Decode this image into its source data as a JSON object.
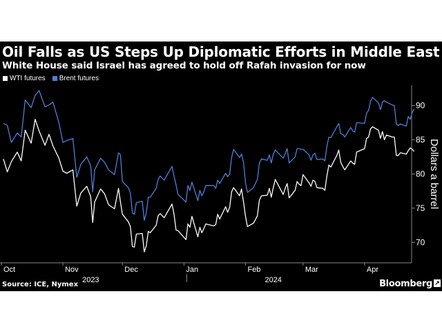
{
  "headline": "Oil Falls as US Steps Up Diplomatic Efforts in Middle East",
  "subheadline": "White House said Israel has agreed to hold off Rafah invasion for now",
  "source": "Source: ICE, Nymex",
  "brand": "Bloomberg",
  "brand_icon": "arrow-icon",
  "colors": {
    "background": "#000000",
    "wti": "#ffffff",
    "brent": "#4f7fd6",
    "grid": "#3a3a3a"
  },
  "chart_data": {
    "type": "line",
    "title": "",
    "xlabel": "",
    "ylabel": "Dollars a barrel",
    "ylim": [
      67,
      93
    ],
    "y_ticks": [
      70,
      75,
      80,
      85,
      90
    ],
    "y_axis_side": "right",
    "x_range": [
      "2023-10-01",
      "2024-04-24"
    ],
    "x_month_labels": [
      {
        "label": "Oct",
        "date": "2023-10-01"
      },
      {
        "label": "Nov",
        "date": "2023-11-01"
      },
      {
        "label": "Dec",
        "date": "2023-12-01"
      },
      {
        "label": "Jan",
        "date": "2024-01-01"
      },
      {
        "label": "Feb",
        "date": "2024-02-01"
      },
      {
        "label": "Mar",
        "date": "2024-03-01"
      },
      {
        "label": "Apr",
        "date": "2024-04-01"
      }
    ],
    "x_year_labels": [
      {
        "label": "2023",
        "date": "2023-11-15"
      },
      {
        "label": "2024",
        "date": "2024-02-15"
      }
    ],
    "legend_position": "top-left",
    "grid": false,
    "series": [
      {
        "name": "WTI futures",
        "color": "#ffffff",
        "points": [
          [
            "2023-10-02",
            82.2
          ],
          [
            "2023-10-04",
            80.3
          ],
          [
            "2023-10-06",
            81.8
          ],
          [
            "2023-10-09",
            83.2
          ],
          [
            "2023-10-11",
            81.9
          ],
          [
            "2023-10-13",
            86.4
          ],
          [
            "2023-10-16",
            84.5
          ],
          [
            "2023-10-18",
            88.0
          ],
          [
            "2023-10-20",
            86.3
          ],
          [
            "2023-10-23",
            84.2
          ],
          [
            "2023-10-25",
            85.8
          ],
          [
            "2023-10-27",
            84.1
          ],
          [
            "2023-10-30",
            82.3
          ],
          [
            "2023-11-01",
            80.4
          ],
          [
            "2023-11-03",
            80.1
          ],
          [
            "2023-11-06",
            80.6
          ],
          [
            "2023-11-08",
            75.3
          ],
          [
            "2023-11-10",
            77.2
          ],
          [
            "2023-11-13",
            78.2
          ],
          [
            "2023-11-15",
            76.7
          ],
          [
            "2023-11-16",
            72.9
          ],
          [
            "2023-11-17",
            75.9
          ],
          [
            "2023-11-20",
            77.8
          ],
          [
            "2023-11-22",
            77.1
          ],
          [
            "2023-11-24",
            75.5
          ],
          [
            "2023-11-27",
            74.9
          ],
          [
            "2023-11-29",
            77.9
          ],
          [
            "2023-11-30",
            75.9
          ],
          [
            "2023-12-01",
            74.1
          ],
          [
            "2023-12-04",
            73.0
          ],
          [
            "2023-12-05",
            72.3
          ],
          [
            "2023-12-06",
            69.4
          ],
          [
            "2023-12-07",
            69.3
          ],
          [
            "2023-12-08",
            71.2
          ],
          [
            "2023-12-11",
            71.3
          ],
          [
            "2023-12-12",
            68.6
          ],
          [
            "2023-12-13",
            69.5
          ],
          [
            "2023-12-14",
            71.6
          ],
          [
            "2023-12-15",
            71.4
          ],
          [
            "2023-12-18",
            72.5
          ],
          [
            "2023-12-19",
            73.9
          ],
          [
            "2023-12-20",
            74.2
          ],
          [
            "2023-12-21",
            73.9
          ],
          [
            "2023-12-22",
            73.6
          ],
          [
            "2023-12-26",
            75.6
          ],
          [
            "2023-12-27",
            74.1
          ],
          [
            "2023-12-28",
            71.8
          ],
          [
            "2023-12-29",
            71.7
          ],
          [
            "2024-01-02",
            70.4
          ],
          [
            "2024-01-03",
            72.7
          ],
          [
            "2024-01-04",
            72.2
          ],
          [
            "2024-01-05",
            73.8
          ],
          [
            "2024-01-08",
            70.8
          ],
          [
            "2024-01-09",
            72.2
          ],
          [
            "2024-01-10",
            71.4
          ],
          [
            "2024-01-11",
            72.0
          ],
          [
            "2024-01-12",
            72.7
          ],
          [
            "2024-01-16",
            72.4
          ],
          [
            "2024-01-17",
            72.6
          ],
          [
            "2024-01-18",
            74.1
          ],
          [
            "2024-01-19",
            73.4
          ],
          [
            "2024-01-22",
            75.2
          ],
          [
            "2024-01-23",
            74.4
          ],
          [
            "2024-01-24",
            75.1
          ],
          [
            "2024-01-25",
            77.4
          ],
          [
            "2024-01-26",
            78.0
          ],
          [
            "2024-01-29",
            76.8
          ],
          [
            "2024-01-30",
            77.8
          ],
          [
            "2024-01-31",
            75.9
          ],
          [
            "2024-02-01",
            73.8
          ],
          [
            "2024-02-02",
            72.3
          ],
          [
            "2024-02-05",
            72.8
          ],
          [
            "2024-02-06",
            73.3
          ],
          [
            "2024-02-07",
            73.9
          ],
          [
            "2024-02-08",
            76.2
          ],
          [
            "2024-02-09",
            76.8
          ],
          [
            "2024-02-12",
            76.9
          ],
          [
            "2024-02-13",
            77.9
          ],
          [
            "2024-02-14",
            76.6
          ],
          [
            "2024-02-15",
            78.0
          ],
          [
            "2024-02-16",
            79.2
          ],
          [
            "2024-02-20",
            77.0
          ],
          [
            "2024-02-21",
            77.9
          ],
          [
            "2024-02-22",
            78.6
          ],
          [
            "2024-02-23",
            76.5
          ],
          [
            "2024-02-26",
            77.6
          ],
          [
            "2024-02-27",
            78.9
          ],
          [
            "2024-02-28",
            78.5
          ],
          [
            "2024-02-29",
            78.3
          ],
          [
            "2024-03-01",
            79.9
          ],
          [
            "2024-03-04",
            78.7
          ],
          [
            "2024-03-05",
            78.2
          ],
          [
            "2024-03-06",
            79.1
          ],
          [
            "2024-03-07",
            78.9
          ],
          [
            "2024-03-08",
            78.0
          ],
          [
            "2024-03-11",
            77.9
          ],
          [
            "2024-03-12",
            77.6
          ],
          [
            "2024-03-13",
            79.7
          ],
          [
            "2024-03-14",
            81.3
          ],
          [
            "2024-03-15",
            81.0
          ],
          [
            "2024-03-18",
            82.7
          ],
          [
            "2024-03-19",
            83.5
          ],
          [
            "2024-03-20",
            81.7
          ],
          [
            "2024-03-21",
            81.1
          ],
          [
            "2024-03-22",
            80.6
          ],
          [
            "2024-03-25",
            81.9
          ],
          [
            "2024-03-26",
            81.6
          ],
          [
            "2024-03-27",
            81.4
          ],
          [
            "2024-03-28",
            83.2
          ],
          [
            "2024-04-01",
            83.7
          ],
          [
            "2024-04-02",
            85.2
          ],
          [
            "2024-04-03",
            85.4
          ],
          [
            "2024-04-04",
            86.6
          ],
          [
            "2024-04-05",
            86.9
          ],
          [
            "2024-04-08",
            86.4
          ],
          [
            "2024-04-09",
            85.2
          ],
          [
            "2024-04-10",
            86.2
          ],
          [
            "2024-04-11",
            85.0
          ],
          [
            "2024-04-12",
            85.7
          ],
          [
            "2024-04-15",
            85.4
          ],
          [
            "2024-04-16",
            85.4
          ],
          [
            "2024-04-17",
            82.7
          ],
          [
            "2024-04-18",
            82.7
          ],
          [
            "2024-04-19",
            83.1
          ],
          [
            "2024-04-22",
            82.9
          ],
          [
            "2024-04-23",
            83.4
          ],
          [
            "2024-04-24",
            83.8
          ],
          [
            "2024-04-25",
            83.6
          ],
          [
            "2024-04-26",
            83.3
          ]
        ]
      },
      {
        "name": "Brent futures",
        "color": "#4f7fd6",
        "points": [
          [
            "2023-10-02",
            87.4
          ],
          [
            "2023-10-04",
            87.1
          ],
          [
            "2023-10-06",
            84.6
          ],
          [
            "2023-10-09",
            86.0
          ],
          [
            "2023-10-11",
            85.4
          ],
          [
            "2023-10-13",
            90.8
          ],
          [
            "2023-10-16",
            89.7
          ],
          [
            "2023-10-18",
            91.5
          ],
          [
            "2023-10-20",
            92.2
          ],
          [
            "2023-10-23",
            89.8
          ],
          [
            "2023-10-25",
            90.1
          ],
          [
            "2023-10-27",
            90.5
          ],
          [
            "2023-10-30",
            87.5
          ],
          [
            "2023-11-01",
            84.6
          ],
          [
            "2023-11-03",
            84.9
          ],
          [
            "2023-11-06",
            85.2
          ],
          [
            "2023-11-08",
            79.5
          ],
          [
            "2023-11-10",
            81.4
          ],
          [
            "2023-11-13",
            82.5
          ],
          [
            "2023-11-15",
            81.2
          ],
          [
            "2023-11-16",
            77.4
          ],
          [
            "2023-11-17",
            80.6
          ],
          [
            "2023-11-20",
            82.3
          ],
          [
            "2023-11-22",
            81.7
          ],
          [
            "2023-11-24",
            80.6
          ],
          [
            "2023-11-27",
            79.9
          ],
          [
            "2023-11-29",
            83.1
          ],
          [
            "2023-11-30",
            82.8
          ],
          [
            "2023-12-01",
            78.9
          ],
          [
            "2023-12-04",
            78.0
          ],
          [
            "2023-12-05",
            77.2
          ],
          [
            "2023-12-06",
            74.3
          ],
          [
            "2023-12-07",
            74.1
          ],
          [
            "2023-12-08",
            75.8
          ],
          [
            "2023-12-11",
            76.0
          ],
          [
            "2023-12-12",
            73.2
          ],
          [
            "2023-12-13",
            74.3
          ],
          [
            "2023-12-14",
            76.6
          ],
          [
            "2023-12-15",
            76.6
          ],
          [
            "2023-12-18",
            77.9
          ],
          [
            "2023-12-19",
            79.2
          ],
          [
            "2023-12-20",
            79.7
          ],
          [
            "2023-12-21",
            79.4
          ],
          [
            "2023-12-22",
            79.1
          ],
          [
            "2023-12-26",
            81.1
          ],
          [
            "2023-12-27",
            79.7
          ],
          [
            "2023-12-28",
            78.4
          ],
          [
            "2023-12-29",
            77.0
          ],
          [
            "2024-01-02",
            75.9
          ],
          [
            "2024-01-03",
            78.3
          ],
          [
            "2024-01-04",
            77.6
          ],
          [
            "2024-01-05",
            78.8
          ],
          [
            "2024-01-08",
            76.1
          ],
          [
            "2024-01-09",
            77.6
          ],
          [
            "2024-01-10",
            76.8
          ],
          [
            "2024-01-11",
            77.4
          ],
          [
            "2024-01-12",
            78.3
          ],
          [
            "2024-01-16",
            78.3
          ],
          [
            "2024-01-17",
            77.9
          ],
          [
            "2024-01-18",
            79.1
          ],
          [
            "2024-01-19",
            78.6
          ],
          [
            "2024-01-22",
            80.1
          ],
          [
            "2024-01-23",
            79.6
          ],
          [
            "2024-01-24",
            80.0
          ],
          [
            "2024-01-25",
            82.4
          ],
          [
            "2024-01-26",
            83.6
          ],
          [
            "2024-01-29",
            82.4
          ],
          [
            "2024-01-30",
            82.9
          ],
          [
            "2024-01-31",
            81.7
          ],
          [
            "2024-02-01",
            78.7
          ],
          [
            "2024-02-02",
            77.3
          ],
          [
            "2024-02-05",
            78.0
          ],
          [
            "2024-02-06",
            78.6
          ],
          [
            "2024-02-07",
            79.2
          ],
          [
            "2024-02-08",
            81.6
          ],
          [
            "2024-02-09",
            82.2
          ],
          [
            "2024-02-12",
            82.0
          ],
          [
            "2024-02-13",
            82.8
          ],
          [
            "2024-02-14",
            81.6
          ],
          [
            "2024-02-15",
            82.9
          ],
          [
            "2024-02-16",
            83.5
          ],
          [
            "2024-02-20",
            82.3
          ],
          [
            "2024-02-21",
            83.0
          ],
          [
            "2024-02-22",
            83.7
          ],
          [
            "2024-02-23",
            81.6
          ],
          [
            "2024-02-26",
            82.5
          ],
          [
            "2024-02-27",
            83.7
          ],
          [
            "2024-02-28",
            83.7
          ],
          [
            "2024-02-29",
            83.6
          ],
          [
            "2024-03-01",
            83.6
          ],
          [
            "2024-03-04",
            82.8
          ],
          [
            "2024-03-05",
            82.0
          ],
          [
            "2024-03-06",
            82.8
          ],
          [
            "2024-03-07",
            83.0
          ],
          [
            "2024-03-08",
            82.1
          ],
          [
            "2024-03-11",
            82.2
          ],
          [
            "2024-03-12",
            81.9
          ],
          [
            "2024-03-13",
            84.0
          ],
          [
            "2024-03-14",
            85.4
          ],
          [
            "2024-03-15",
            85.3
          ],
          [
            "2024-03-18",
            86.9
          ],
          [
            "2024-03-19",
            87.4
          ],
          [
            "2024-03-20",
            85.9
          ],
          [
            "2024-03-21",
            85.8
          ],
          [
            "2024-03-22",
            85.4
          ],
          [
            "2024-03-25",
            86.8
          ],
          [
            "2024-03-26",
            86.3
          ],
          [
            "2024-03-27",
            86.1
          ],
          [
            "2024-03-28",
            87.5
          ],
          [
            "2024-04-01",
            87.4
          ],
          [
            "2024-04-02",
            88.9
          ],
          [
            "2024-04-03",
            89.3
          ],
          [
            "2024-04-04",
            90.6
          ],
          [
            "2024-04-05",
            91.2
          ],
          [
            "2024-04-08",
            90.4
          ],
          [
            "2024-04-09",
            89.4
          ],
          [
            "2024-04-10",
            90.5
          ],
          [
            "2024-04-11",
            90.7
          ],
          [
            "2024-04-12",
            90.5
          ],
          [
            "2024-04-15",
            90.1
          ],
          [
            "2024-04-16",
            90.0
          ],
          [
            "2024-04-17",
            87.3
          ],
          [
            "2024-04-18",
            87.1
          ],
          [
            "2024-04-19",
            87.3
          ],
          [
            "2024-04-22",
            87.0
          ],
          [
            "2024-04-23",
            88.4
          ],
          [
            "2024-04-24",
            88.0
          ],
          [
            "2024-04-25",
            89.0
          ],
          [
            "2024-04-26",
            89.5
          ]
        ]
      }
    ]
  }
}
